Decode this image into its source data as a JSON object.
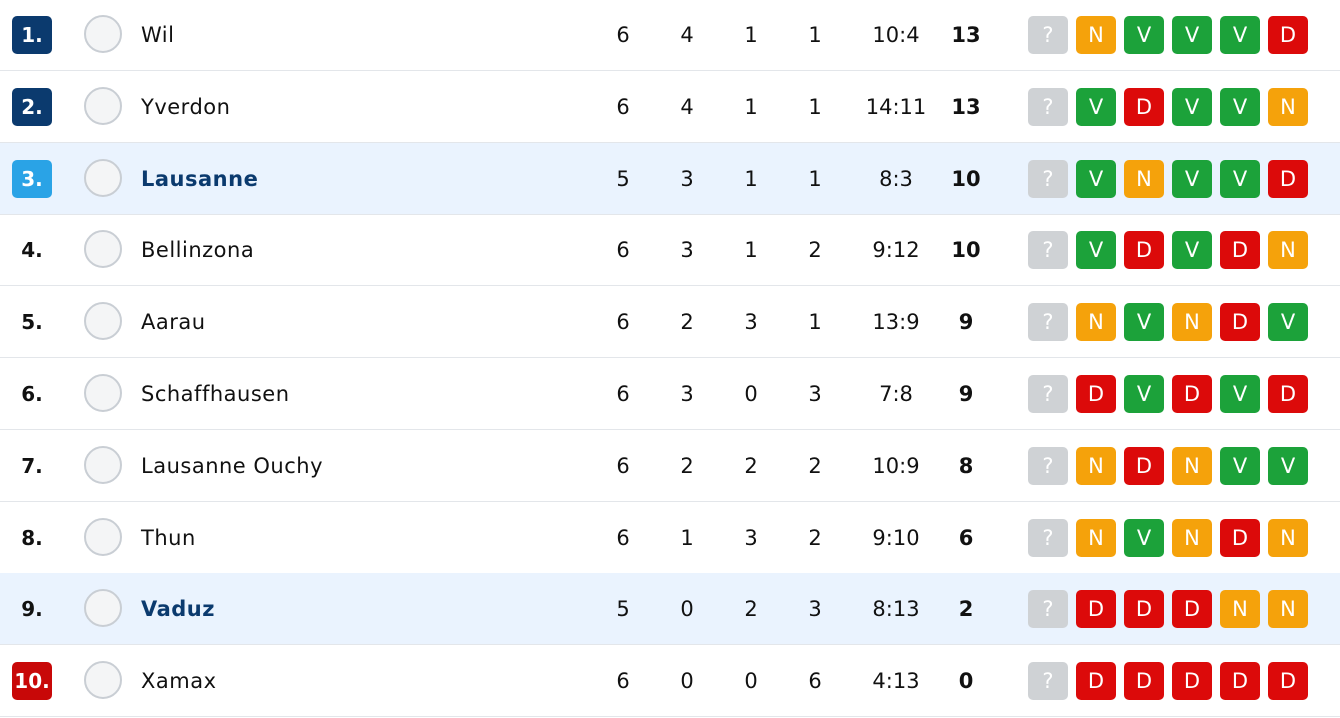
{
  "table": {
    "rows": [
      {
        "rank": "1.",
        "team": "Wil",
        "played": "6",
        "wins": "4",
        "draws": "1",
        "losses": "1",
        "goals": "10:4",
        "points": "13",
        "next": "?",
        "form": [
          {
            "result": "N",
            "color": "#f5a20b"
          },
          {
            "result": "V",
            "color": "#1ca23a"
          },
          {
            "result": "V",
            "color": "#1ca23a"
          },
          {
            "result": "V",
            "color": "#1ca23a"
          },
          {
            "result": "D",
            "color": "#dc0a0a"
          }
        ]
      },
      {
        "rank": "2.",
        "team": "Yverdon",
        "played": "6",
        "wins": "4",
        "draws": "1",
        "losses": "1",
        "goals": "14:11",
        "points": "13",
        "next": "?",
        "form": [
          {
            "result": "V",
            "color": "#1ca23a"
          },
          {
            "result": "D",
            "color": "#dc0a0a"
          },
          {
            "result": "V",
            "color": "#1ca23a"
          },
          {
            "result": "V",
            "color": "#1ca23a"
          },
          {
            "result": "N",
            "color": "#f5a20b"
          }
        ]
      },
      {
        "rank": "3.",
        "team": "Lausanne",
        "played": "5",
        "wins": "3",
        "draws": "1",
        "losses": "1",
        "goals": "8:3",
        "points": "10",
        "next": "?",
        "form": [
          {
            "result": "V",
            "color": "#1ca23a"
          },
          {
            "result": "N",
            "color": "#f5a20b"
          },
          {
            "result": "V",
            "color": "#1ca23a"
          },
          {
            "result": "V",
            "color": "#1ca23a"
          },
          {
            "result": "D",
            "color": "#dc0a0a"
          }
        ]
      },
      {
        "rank": "4.",
        "team": "Bellinzona",
        "played": "6",
        "wins": "3",
        "draws": "1",
        "losses": "2",
        "goals": "9:12",
        "points": "10",
        "next": "?",
        "form": [
          {
            "result": "V",
            "color": "#1ca23a"
          },
          {
            "result": "D",
            "color": "#dc0a0a"
          },
          {
            "result": "V",
            "color": "#1ca23a"
          },
          {
            "result": "D",
            "color": "#dc0a0a"
          },
          {
            "result": "N",
            "color": "#f5a20b"
          }
        ]
      },
      {
        "rank": "5.",
        "team": "Aarau",
        "played": "6",
        "wins": "2",
        "draws": "3",
        "losses": "1",
        "goals": "13:9",
        "points": "9",
        "next": "?",
        "form": [
          {
            "result": "N",
            "color": "#f5a20b"
          },
          {
            "result": "V",
            "color": "#1ca23a"
          },
          {
            "result": "N",
            "color": "#f5a20b"
          },
          {
            "result": "D",
            "color": "#dc0a0a"
          },
          {
            "result": "V",
            "color": "#1ca23a"
          }
        ]
      },
      {
        "rank": "6.",
        "team": "Schaffhausen",
        "played": "6",
        "wins": "3",
        "draws": "0",
        "losses": "3",
        "goals": "7:8",
        "points": "9",
        "next": "?",
        "form": [
          {
            "result": "D",
            "color": "#dc0a0a"
          },
          {
            "result": "V",
            "color": "#1ca23a"
          },
          {
            "result": "D",
            "color": "#dc0a0a"
          },
          {
            "result": "V",
            "color": "#1ca23a"
          },
          {
            "result": "D",
            "color": "#dc0a0a"
          }
        ]
      },
      {
        "rank": "7.",
        "team": "Lausanne Ouchy",
        "played": "6",
        "wins": "2",
        "draws": "2",
        "losses": "2",
        "goals": "10:9",
        "points": "8",
        "next": "?",
        "form": [
          {
            "result": "N",
            "color": "#f5a20b"
          },
          {
            "result": "D",
            "color": "#dc0a0a"
          },
          {
            "result": "N",
            "color": "#f5a20b"
          },
          {
            "result": "V",
            "color": "#1ca23a"
          },
          {
            "result": "V",
            "color": "#1ca23a"
          }
        ]
      },
      {
        "rank": "8.",
        "team": "Thun",
        "played": "6",
        "wins": "1",
        "draws": "3",
        "losses": "2",
        "goals": "9:10",
        "points": "6",
        "next": "?",
        "form": [
          {
            "result": "N",
            "color": "#f5a20b"
          },
          {
            "result": "V",
            "color": "#1ca23a"
          },
          {
            "result": "N",
            "color": "#f5a20b"
          },
          {
            "result": "D",
            "color": "#dc0a0a"
          },
          {
            "result": "N",
            "color": "#f5a20b"
          }
        ]
      },
      {
        "rank": "9.",
        "team": "Vaduz",
        "played": "5",
        "wins": "0",
        "draws": "2",
        "losses": "3",
        "goals": "8:13",
        "points": "2",
        "next": "?",
        "form": [
          {
            "result": "D",
            "color": "#dc0a0a"
          },
          {
            "result": "D",
            "color": "#dc0a0a"
          },
          {
            "result": "D",
            "color": "#dc0a0a"
          },
          {
            "result": "N",
            "color": "#f5a20b"
          },
          {
            "result": "N",
            "color": "#f5a20b"
          }
        ]
      },
      {
        "rank": "10.",
        "team": "Xamax",
        "played": "6",
        "wins": "0",
        "draws": "0",
        "losses": "6",
        "goals": "4:13",
        "points": "0",
        "next": "?",
        "form": [
          {
            "result": "D",
            "color": "#dc0a0a"
          },
          {
            "result": "D",
            "color": "#dc0a0a"
          },
          {
            "result": "D",
            "color": "#dc0a0a"
          },
          {
            "result": "D",
            "color": "#dc0a0a"
          },
          {
            "result": "D",
            "color": "#dc0a0a"
          }
        ]
      }
    ]
  }
}
